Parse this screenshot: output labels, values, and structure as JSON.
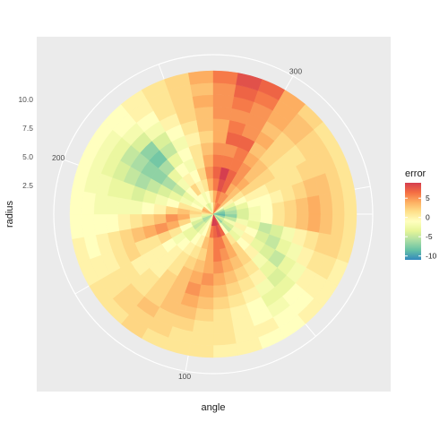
{
  "chart_data": {
    "type": "heatmap",
    "coord": "polar",
    "title": "",
    "xlabel": "angle",
    "ylabel": "radius",
    "angle_ticks": [
      100,
      200,
      300
    ],
    "radius_ticks": [
      "2.5",
      "5.0",
      "7.5",
      "10.0"
    ],
    "radius_range": [
      0,
      12.5
    ],
    "legend": {
      "title": "error",
      "labels": [
        "5",
        "0",
        "-5",
        "-10"
      ],
      "values": [
        5,
        0,
        -5,
        -10
      ],
      "range": [
        -11,
        9
      ],
      "position": "right",
      "palette": [
        "#D53E4F",
        "#F46D43",
        "#FDAE61",
        "#FEE08B",
        "#FFFFBF",
        "#E6F598",
        "#ABDDA4",
        "#66C2A5",
        "#3288BD"
      ]
    },
    "angle_range": [
      0,
      360
    ],
    "n_angle_bins": 36,
    "n_radius_bins": 12,
    "error_grid": [
      [
        -9,
        -7,
        -4,
        -5,
        -7,
        -3,
        8,
        9,
        10,
        9,
        2,
        -1,
        -2,
        -5,
        -6,
        -6,
        -4,
        -3,
        1,
        3,
        4,
        3,
        -1,
        -3,
        -4,
        -3,
        -1,
        3,
        5,
        6,
        6,
        3,
        -1,
        -5,
        -7,
        -8
      ],
      [
        -7,
        -5,
        -2,
        -4,
        -5,
        -1,
        7,
        8,
        7,
        6,
        2,
        -1,
        -2,
        -4,
        -5,
        -4,
        -2,
        1,
        2,
        1,
        -1,
        -2,
        -1,
        -1,
        -2,
        -1,
        1,
        4,
        6,
        5,
        5,
        3,
        0,
        -3,
        -5,
        -6
      ],
      [
        -4,
        -2,
        0,
        -2,
        -3,
        1,
        4,
        6,
        6,
        4,
        3,
        0,
        -1,
        -3,
        -3,
        -1,
        2,
        4,
        3,
        1,
        -2,
        -3,
        -1,
        2,
        0,
        1,
        4,
        6,
        8,
        7,
        4,
        3,
        1,
        -1,
        -3,
        -4
      ],
      [
        -2,
        -3,
        -1,
        0,
        -1,
        2,
        4,
        5,
        6,
        4,
        2,
        1,
        0,
        -1,
        -2,
        1,
        4,
        5,
        2,
        -1,
        -3,
        -5,
        -2,
        0,
        -1,
        2,
        5,
        7,
        9,
        7,
        5,
        4,
        2,
        0,
        -1,
        -2
      ],
      [
        -1,
        -5,
        -4,
        -3,
        0,
        2,
        3,
        4,
        5,
        4,
        3,
        2,
        1,
        0,
        -1,
        2,
        5,
        3,
        0,
        -2,
        -4,
        -6,
        -3,
        -1,
        -2,
        1,
        4,
        6,
        6,
        6,
        5,
        3,
        2,
        0,
        -1,
        -1
      ],
      [
        1,
        -4,
        -5,
        -4,
        -2,
        1,
        2,
        3,
        4,
        5,
        4,
        3,
        1,
        0,
        0,
        1,
        4,
        2,
        -1,
        -3,
        -5,
        -7,
        -6,
        -3,
        -1,
        1,
        3,
        5,
        5,
        6,
        4,
        3,
        2,
        1,
        0,
        1
      ],
      [
        2,
        -2,
        -3,
        -5,
        -3,
        0,
        1,
        2,
        3,
        4,
        5,
        3,
        2,
        0,
        0,
        1,
        3,
        1,
        -2,
        -4,
        -6,
        -7,
        -8,
        -5,
        -2,
        0,
        2,
        4,
        7,
        7,
        3,
        2,
        1,
        1,
        1,
        2
      ],
      [
        3,
        0,
        -2,
        -3,
        -4,
        -2,
        0,
        1,
        2,
        3,
        4,
        3,
        2,
        1,
        0,
        2,
        2,
        0,
        -2,
        -3,
        -5,
        -6,
        -7,
        -4,
        -1,
        1,
        3,
        4,
        6,
        5,
        4,
        2,
        1,
        1,
        2,
        3
      ],
      [
        4,
        1,
        0,
        -2,
        -3,
        -3,
        -1,
        0,
        1,
        2,
        3,
        3,
        2,
        1,
        1,
        1,
        1,
        -1,
        -2,
        -3,
        -4,
        -5,
        -4,
        -2,
        0,
        2,
        3,
        5,
        5,
        5,
        3,
        2,
        1,
        2,
        3,
        4
      ],
      [
        3,
        2,
        1,
        0,
        -1,
        -2,
        -1,
        0,
        1,
        1,
        2,
        2,
        3,
        2,
        1,
        0,
        0,
        -1,
        -2,
        -2,
        -3,
        -3,
        -2,
        -1,
        1,
        2,
        4,
        5,
        6,
        5,
        4,
        3,
        2,
        2,
        3,
        3
      ],
      [
        2,
        2,
        1,
        0,
        -1,
        -1,
        0,
        0,
        1,
        1,
        1,
        2,
        2,
        2,
        1,
        0,
        -1,
        -1,
        -1,
        -2,
        -2,
        -2,
        -1,
        0,
        1,
        2,
        3,
        5,
        7,
        6,
        4,
        3,
        2,
        2,
        2,
        2
      ],
      [
        1,
        1,
        0,
        0,
        0,
        -1,
        -1,
        0,
        0,
        1,
        1,
        1,
        2,
        1,
        1,
        0,
        0,
        -1,
        -1,
        -1,
        -1,
        -1,
        -1,
        0,
        1,
        2,
        4,
        6,
        8,
        7,
        4,
        2,
        1,
        1,
        1,
        1
      ]
    ]
  }
}
